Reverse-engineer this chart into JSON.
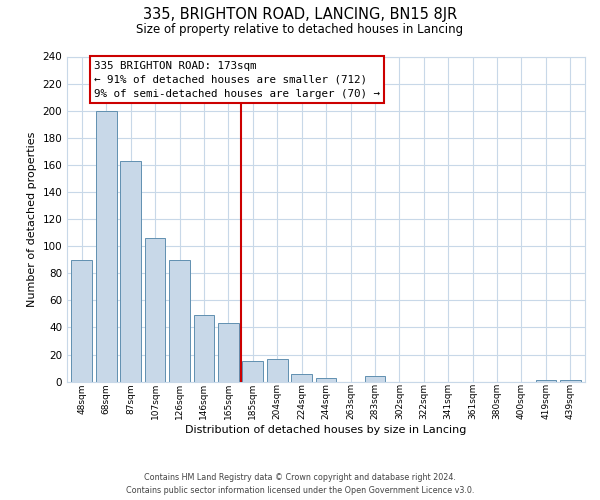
{
  "title": "335, BRIGHTON ROAD, LANCING, BN15 8JR",
  "subtitle": "Size of property relative to detached houses in Lancing",
  "xlabel": "Distribution of detached houses by size in Lancing",
  "ylabel": "Number of detached properties",
  "bar_labels": [
    "48sqm",
    "68sqm",
    "87sqm",
    "107sqm",
    "126sqm",
    "146sqm",
    "165sqm",
    "185sqm",
    "204sqm",
    "224sqm",
    "244sqm",
    "263sqm",
    "283sqm",
    "302sqm",
    "322sqm",
    "341sqm",
    "361sqm",
    "380sqm",
    "400sqm",
    "419sqm",
    "439sqm"
  ],
  "bar_values": [
    90,
    200,
    163,
    106,
    90,
    49,
    43,
    15,
    17,
    6,
    3,
    0,
    4,
    0,
    0,
    0,
    0,
    0,
    0,
    1,
    1
  ],
  "bar_color": "#c8d8e8",
  "bar_edge_color": "#6090b0",
  "vline_x": 6.5,
  "vline_color": "#cc0000",
  "annotation_title": "335 BRIGHTON ROAD: 173sqm",
  "annotation_line1": "← 91% of detached houses are smaller (712)",
  "annotation_line2": "9% of semi-detached houses are larger (70) →",
  "annotation_box_color": "#ffffff",
  "annotation_box_edge": "#cc0000",
  "ylim": [
    0,
    240
  ],
  "yticks": [
    0,
    20,
    40,
    60,
    80,
    100,
    120,
    140,
    160,
    180,
    200,
    220,
    240
  ],
  "footer_line1": "Contains HM Land Registry data © Crown copyright and database right 2024.",
  "footer_line2": "Contains public sector information licensed under the Open Government Licence v3.0.",
  "bg_color": "#ffffff",
  "grid_color": "#c8d8e8"
}
